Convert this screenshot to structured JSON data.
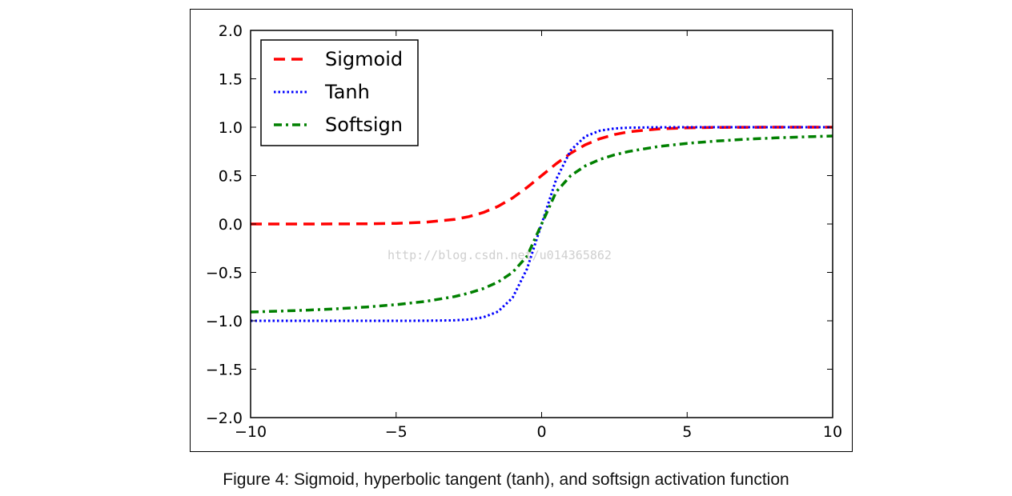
{
  "caption": "Figure 4: Sigmoid, hyperbolic tangent (tanh), and softsign activation function",
  "watermark": "http://blog.csdn.net/u014365862",
  "chart_data": {
    "type": "line",
    "title": "",
    "xlabel": "",
    "ylabel": "",
    "xlim": [
      -10,
      10
    ],
    "ylim": [
      -2.0,
      2.0
    ],
    "xticks": [
      -10,
      -5,
      0,
      5,
      10
    ],
    "xtick_labels": [
      "−10",
      "−5",
      "0",
      "5",
      "10"
    ],
    "yticks": [
      2.0,
      1.5,
      1.0,
      0.5,
      0.0,
      -0.5,
      -1.0,
      -1.5,
      -2.0
    ],
    "ytick_labels": [
      "2.0",
      "1.5",
      "1.0",
      "0.5",
      "0.0",
      "−0.5",
      "−1.0",
      "−1.5",
      "−2.0"
    ],
    "grid": false,
    "legend_position": "top-left",
    "x": [
      -10,
      -9,
      -8,
      -7,
      -6,
      -5,
      -4,
      -3,
      -2.5,
      -2,
      -1.5,
      -1,
      -0.5,
      0,
      0.5,
      1,
      1.5,
      2,
      2.5,
      3,
      4,
      5,
      6,
      7,
      8,
      9,
      10
    ],
    "series": [
      {
        "name": "Sigmoid",
        "color": "#ff0000",
        "style": "dashed",
        "values": [
          0.0,
          0.0001,
          0.0003,
          0.0009,
          0.0025,
          0.0067,
          0.018,
          0.047,
          0.076,
          0.119,
          0.182,
          0.269,
          0.378,
          0.5,
          0.622,
          0.731,
          0.818,
          0.881,
          0.924,
          0.953,
          0.982,
          0.993,
          0.998,
          0.999,
          1.0,
          1.0,
          1.0
        ]
      },
      {
        "name": "Tanh",
        "color": "#0000ff",
        "style": "dotted",
        "values": [
          -1.0,
          -1.0,
          -1.0,
          -1.0,
          -1.0,
          -1.0,
          -0.999,
          -0.995,
          -0.987,
          -0.964,
          -0.905,
          -0.762,
          -0.462,
          0.0,
          0.462,
          0.762,
          0.905,
          0.964,
          0.987,
          0.995,
          0.999,
          1.0,
          1.0,
          1.0,
          1.0,
          1.0,
          1.0
        ]
      },
      {
        "name": "Softsign",
        "color": "#008000",
        "style": "dashdot",
        "values": [
          -0.909,
          -0.9,
          -0.889,
          -0.875,
          -0.857,
          -0.833,
          -0.8,
          -0.75,
          -0.714,
          -0.667,
          -0.6,
          -0.5,
          -0.333,
          0.0,
          0.333,
          0.5,
          0.6,
          0.667,
          0.714,
          0.75,
          0.8,
          0.833,
          0.857,
          0.875,
          0.889,
          0.9,
          0.909
        ]
      }
    ]
  }
}
